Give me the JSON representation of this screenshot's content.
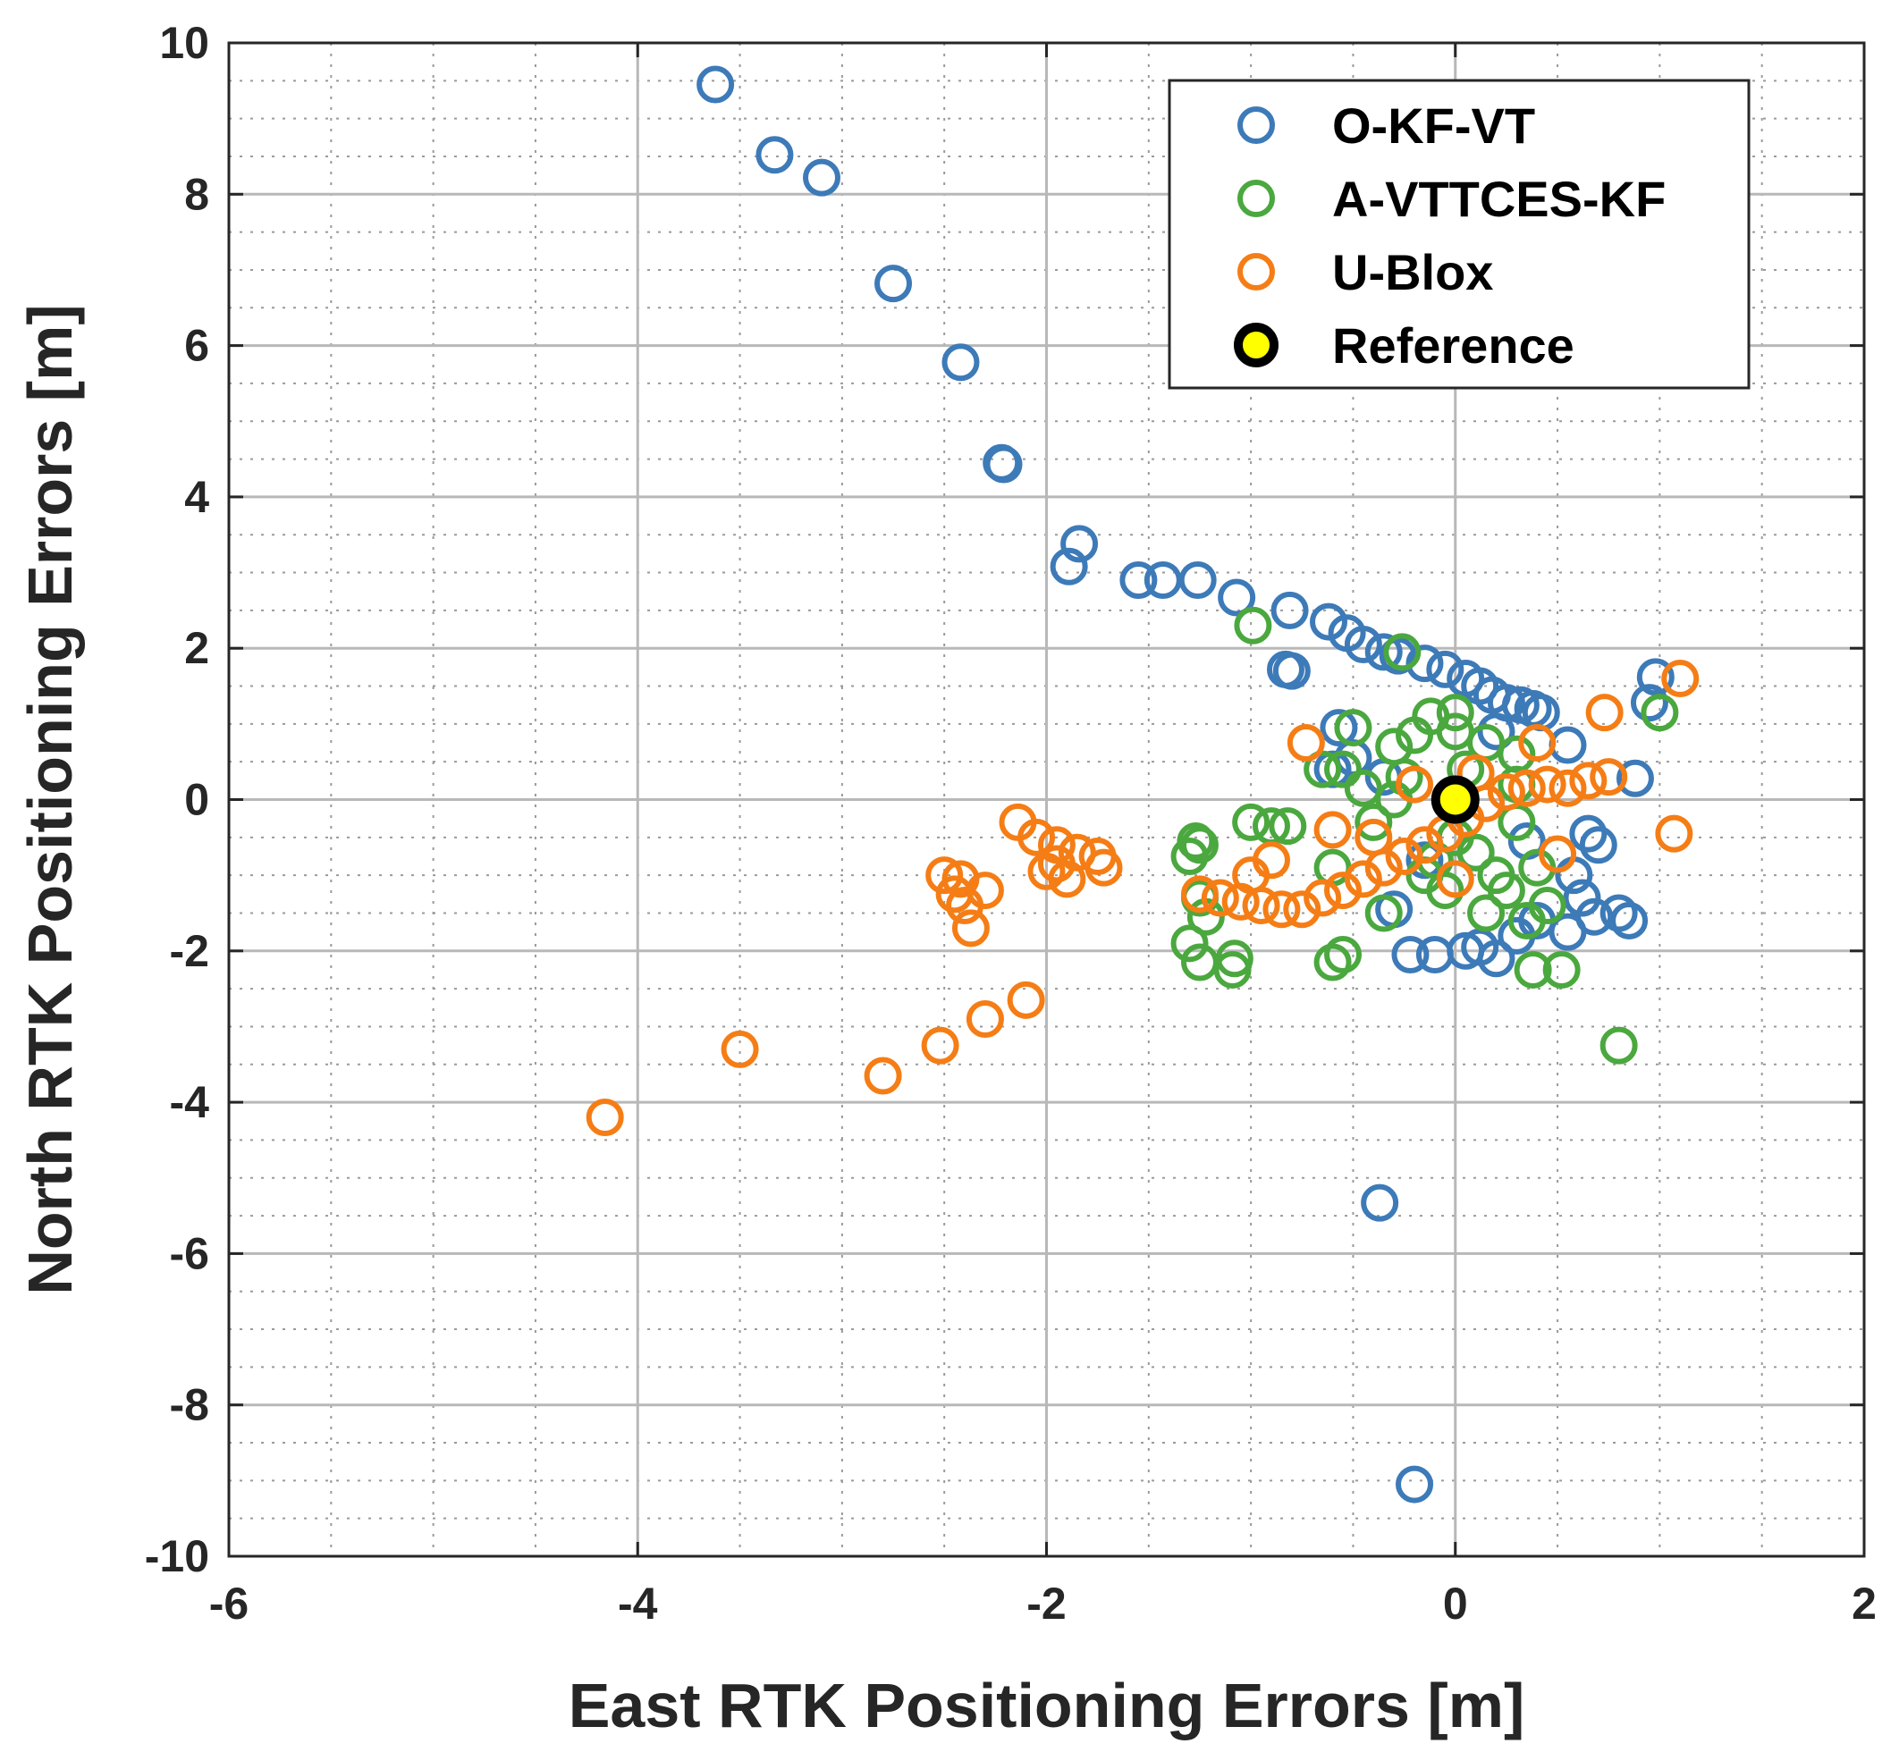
{
  "chart_data": {
    "type": "scatter",
    "title": "",
    "xlabel": "East RTK Positioning Errors [m]",
    "ylabel": "North RTK Positioning Errors [m]",
    "xlim": [
      -6,
      2
    ],
    "ylim": [
      -10,
      10
    ],
    "xticks": [
      -6,
      -4,
      -2,
      0,
      2
    ],
    "yticks": [
      -10,
      -8,
      -6,
      -4,
      -2,
      0,
      2,
      4,
      6,
      8,
      10
    ],
    "grid": true,
    "minor_grid": true,
    "legend_position": "top-right",
    "series": [
      {
        "name": "O-KF-VT",
        "color": "#3d7ab8",
        "marker": "open-circle",
        "points": [
          [
            -3.62,
            9.45
          ],
          [
            -3.33,
            8.52
          ],
          [
            -3.1,
            8.22
          ],
          [
            -2.75,
            6.82
          ],
          [
            -2.42,
            5.78
          ],
          [
            -2.21,
            4.43
          ],
          [
            -2.22,
            4.45
          ],
          [
            -1.84,
            3.38
          ],
          [
            -1.89,
            3.08
          ],
          [
            -1.55,
            2.9
          ],
          [
            -1.43,
            2.9
          ],
          [
            -1.26,
            2.9
          ],
          [
            -1.07,
            2.67
          ],
          [
            -0.81,
            2.5
          ],
          [
            -0.62,
            2.35
          ],
          [
            -0.53,
            2.2
          ],
          [
            -0.45,
            2.05
          ],
          [
            -0.35,
            1.95
          ],
          [
            -0.28,
            1.9
          ],
          [
            -0.83,
            1.72
          ],
          [
            -0.8,
            1.7
          ],
          [
            -0.15,
            1.8
          ],
          [
            -0.05,
            1.72
          ],
          [
            0.05,
            1.6
          ],
          [
            0.12,
            1.5
          ],
          [
            0.18,
            1.38
          ],
          [
            0.25,
            1.28
          ],
          [
            0.32,
            1.25
          ],
          [
            0.38,
            1.2
          ],
          [
            0.42,
            1.15
          ],
          [
            0.98,
            1.62
          ],
          [
            0.95,
            1.28
          ],
          [
            0.88,
            0.28
          ],
          [
            0.55,
            0.72
          ],
          [
            -0.57,
            0.95
          ],
          [
            -0.5,
            0.55
          ],
          [
            -0.35,
            0.3
          ],
          [
            0.65,
            -0.45
          ],
          [
            0.7,
            -0.6
          ],
          [
            0.58,
            -1.0
          ],
          [
            0.62,
            -1.3
          ],
          [
            0.68,
            -1.55
          ],
          [
            0.8,
            -1.5
          ],
          [
            0.85,
            -1.6
          ],
          [
            0.55,
            -1.75
          ],
          [
            0.3,
            -1.8
          ],
          [
            0.12,
            -1.95
          ],
          [
            0.05,
            -2.0
          ],
          [
            -0.1,
            -2.05
          ],
          [
            -0.22,
            -2.05
          ],
          [
            -0.3,
            -1.45
          ],
          [
            0.4,
            -1.6
          ],
          [
            0.2,
            -2.1
          ],
          [
            -0.37,
            -5.33
          ],
          [
            -0.2,
            -9.05
          ],
          [
            -0.15,
            -0.8
          ],
          [
            0.1,
            -0.7
          ],
          [
            0.2,
            0.9
          ],
          [
            -0.6,
            0.4
          ],
          [
            0.35,
            -0.55
          ]
        ]
      },
      {
        "name": "A-VTTCES-KF",
        "color": "#4aa83e",
        "marker": "open-circle",
        "points": [
          [
            -0.99,
            2.3
          ],
          [
            -0.26,
            1.95
          ],
          [
            1.0,
            1.15
          ],
          [
            -0.12,
            1.1
          ],
          [
            0.0,
            1.15
          ],
          [
            -0.2,
            0.85
          ],
          [
            -0.3,
            0.7
          ],
          [
            0.0,
            0.9
          ],
          [
            0.15,
            0.75
          ],
          [
            0.3,
            0.6
          ],
          [
            -0.5,
            0.95
          ],
          [
            -0.65,
            0.4
          ],
          [
            -0.55,
            0.4
          ],
          [
            -0.45,
            0.15
          ],
          [
            -0.3,
            0.0
          ],
          [
            -1.0,
            -0.3
          ],
          [
            -0.9,
            -0.35
          ],
          [
            -0.82,
            -0.35
          ],
          [
            -1.27,
            -0.55
          ],
          [
            -1.25,
            -0.6
          ],
          [
            -1.3,
            -0.75
          ],
          [
            -1.25,
            -1.3
          ],
          [
            -1.22,
            -1.55
          ],
          [
            -1.3,
            -1.9
          ],
          [
            -1.25,
            -2.15
          ],
          [
            -1.08,
            -2.1
          ],
          [
            -1.09,
            -2.25
          ],
          [
            -0.6,
            -2.15
          ],
          [
            -0.55,
            -2.05
          ],
          [
            -0.35,
            -1.5
          ],
          [
            0.38,
            -2.25
          ],
          [
            0.52,
            -2.25
          ],
          [
            0.8,
            -3.25
          ],
          [
            0.35,
            -1.6
          ],
          [
            0.45,
            -1.4
          ],
          [
            0.2,
            -1.0
          ],
          [
            0.1,
            -0.7
          ],
          [
            0.0,
            -0.5
          ],
          [
            -0.1,
            -0.8
          ],
          [
            0.3,
            -0.3
          ],
          [
            0.25,
            -1.2
          ],
          [
            0.15,
            -1.5
          ],
          [
            -0.05,
            -1.2
          ],
          [
            -0.15,
            -1.0
          ],
          [
            0.4,
            -0.9
          ],
          [
            -0.4,
            -0.3
          ],
          [
            -0.6,
            -0.9
          ],
          [
            0.05,
            0.4
          ],
          [
            0.3,
            0.2
          ],
          [
            -0.25,
            0.3
          ]
        ]
      },
      {
        "name": "U-Blox",
        "color": "#f57d15",
        "marker": "open-circle",
        "points": [
          [
            1.1,
            1.6
          ],
          [
            0.73,
            1.15
          ],
          [
            0.4,
            0.75
          ],
          [
            -0.73,
            0.75
          ],
          [
            0.75,
            0.3
          ],
          [
            1.07,
            -0.45
          ],
          [
            0.5,
            -0.72
          ],
          [
            0.0,
            -1.05
          ],
          [
            -2.14,
            -0.3
          ],
          [
            -2.05,
            -0.5
          ],
          [
            -1.95,
            -0.6
          ],
          [
            -1.85,
            -0.7
          ],
          [
            -1.75,
            -0.75
          ],
          [
            -1.95,
            -0.85
          ],
          [
            -2.0,
            -0.95
          ],
          [
            -1.9,
            -1.05
          ],
          [
            -1.72,
            -0.9
          ],
          [
            -2.5,
            -1.0
          ],
          [
            -2.42,
            -1.05
          ],
          [
            -2.45,
            -1.25
          ],
          [
            -2.4,
            -1.4
          ],
          [
            -2.3,
            -1.2
          ],
          [
            -2.37,
            -1.7
          ],
          [
            -2.1,
            -2.65
          ],
          [
            -2.3,
            -2.9
          ],
          [
            -2.52,
            -3.25
          ],
          [
            -2.8,
            -3.65
          ],
          [
            -3.5,
            -3.3
          ],
          [
            -4.16,
            -4.2
          ],
          [
            -1.25,
            -1.25
          ],
          [
            -1.15,
            -1.3
          ],
          [
            -1.05,
            -1.35
          ],
          [
            -0.95,
            -1.4
          ],
          [
            -0.85,
            -1.45
          ],
          [
            -0.75,
            -1.45
          ],
          [
            -0.65,
            -1.3
          ],
          [
            -0.55,
            -1.2
          ],
          [
            -0.45,
            -1.05
          ],
          [
            -0.35,
            -0.9
          ],
          [
            -0.25,
            -0.75
          ],
          [
            -0.15,
            -0.6
          ],
          [
            -0.05,
            -0.45
          ],
          [
            0.05,
            -0.25
          ],
          [
            0.15,
            -0.05
          ],
          [
            0.25,
            0.1
          ],
          [
            0.35,
            0.15
          ],
          [
            0.45,
            0.2
          ],
          [
            0.55,
            0.15
          ],
          [
            0.65,
            0.25
          ],
          [
            -0.6,
            -0.4
          ],
          [
            -0.2,
            0.2
          ],
          [
            0.1,
            0.35
          ],
          [
            -0.9,
            -0.8
          ],
          [
            -1.0,
            -1.0
          ],
          [
            -0.4,
            -0.5
          ]
        ]
      },
      {
        "name": "Reference",
        "color": "#ffff00",
        "edge_color": "#000000",
        "marker": "filled-circle",
        "points": [
          [
            0,
            0
          ]
        ]
      }
    ]
  }
}
